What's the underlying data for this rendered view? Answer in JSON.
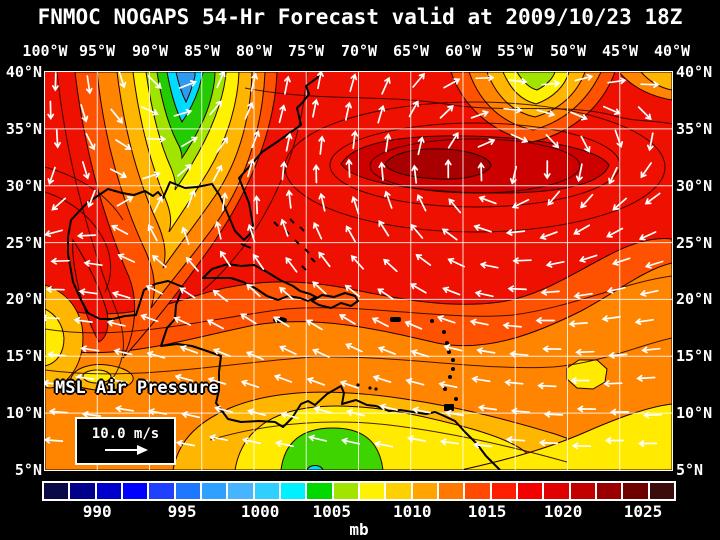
{
  "title": "FNMOC NOGAPS 54-Hr Forecast valid at 2009/10/23 18Z",
  "map": {
    "top_axis": [
      "100°W",
      "95°W",
      "90°W",
      "85°W",
      "80°W",
      "75°W",
      "70°W",
      "65°W",
      "60°W",
      "55°W",
      "50°W",
      "45°W",
      "40°W"
    ],
    "left_axis": [
      "40°N",
      "35°N",
      "30°N",
      "25°N",
      "20°N",
      "15°N",
      "10°N",
      "5°N"
    ],
    "right_axis": [
      "40°N",
      "35°N",
      "30°N",
      "25°N",
      "20°N",
      "15°N",
      "10°N",
      "5°N"
    ],
    "field_label": "MSL Air Pressure",
    "wind_legend": {
      "speed_label": "10.0 m/s"
    }
  },
  "colorbar": {
    "unit": "mb",
    "ticks": [
      "990",
      "995",
      "1000",
      "1005",
      "1010",
      "1015",
      "1020",
      "1025"
    ],
    "tick_positions_pct": [
      8.7,
      22.1,
      34.4,
      45.7,
      58.4,
      70.2,
      82.2,
      94.8
    ],
    "colors": [
      "#0a0a46",
      "#00008b",
      "#0000cd",
      "#0000ff",
      "#2040ff",
      "#1e78ff",
      "#2ea0ff",
      "#46b4ff",
      "#2fd0ff",
      "#00f0ff",
      "#00d800",
      "#a0e400",
      "#fff200",
      "#ffd000",
      "#ffa400",
      "#ff7800",
      "#ff4a00",
      "#ff1e00",
      "#f50000",
      "#e00000",
      "#c30000",
      "#9a0000",
      "#6e0000",
      "#3a0c0c"
    ]
  },
  "colors": {
    "background": "#000000",
    "text": "#ffffff",
    "graticule": "#ffffff",
    "coastline": "#000000",
    "wind_arrows": "#ffffff"
  }
}
